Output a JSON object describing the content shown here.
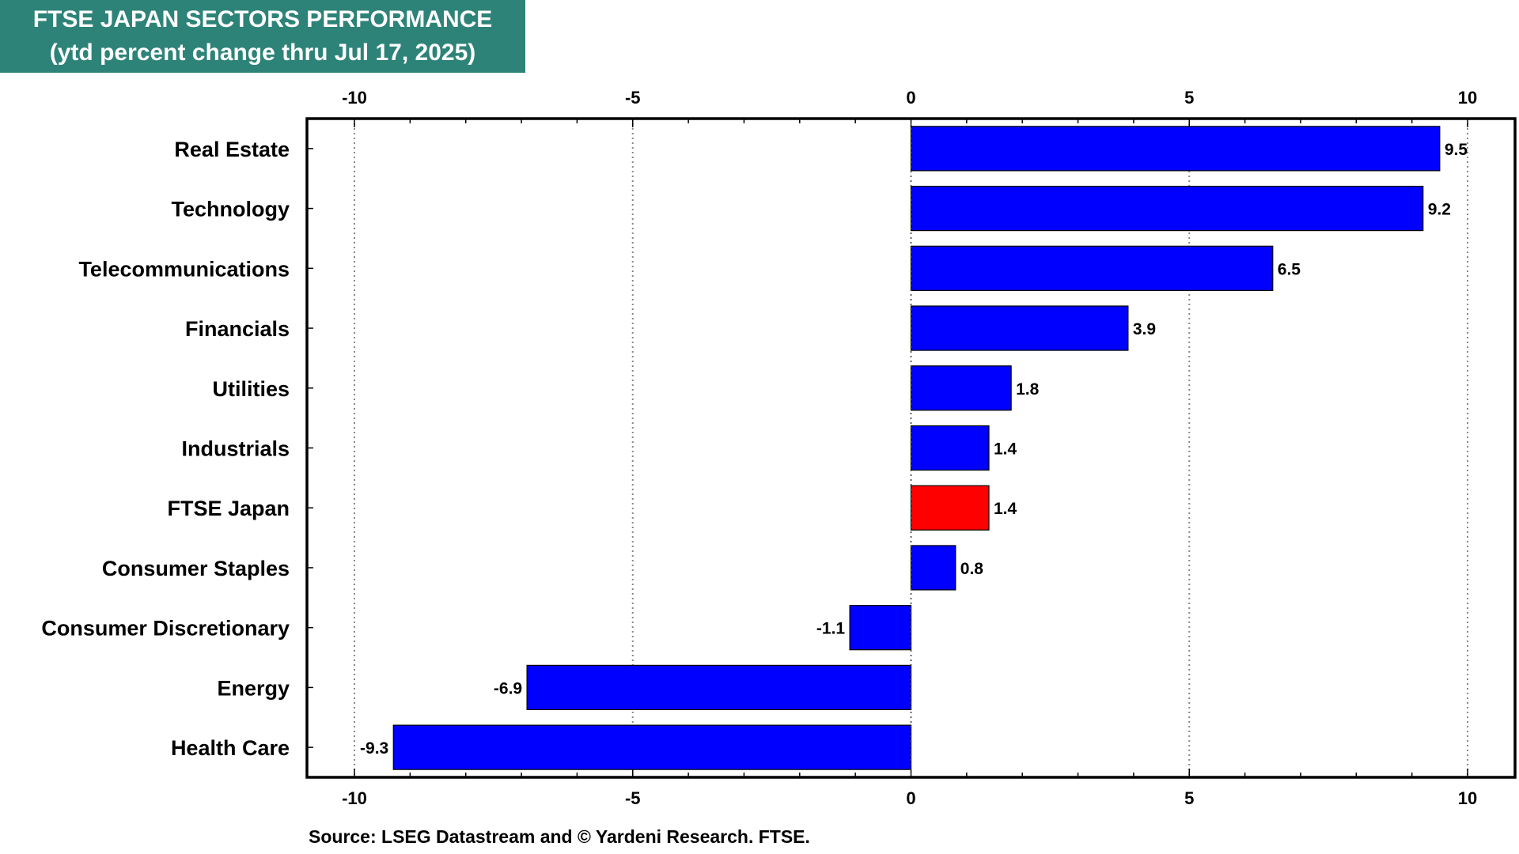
{
  "title": {
    "line1": "FTSE JAPAN SECTORS PERFORMANCE",
    "line2": "(ytd percent change thru Jul 17, 2025)"
  },
  "source": "Source: LSEG Datastream and © Yardeni Research. FTSE.",
  "colors": {
    "bar": "#0000ff",
    "highlight": "#ff0000",
    "title_bg": "#2e8378"
  },
  "chart_data": {
    "type": "bar",
    "orientation": "horizontal",
    "categories": [
      "Real Estate",
      "Technology",
      "Telecommunications",
      "Financials",
      "Utilities",
      "Industrials",
      "FTSE Japan",
      "Consumer Staples",
      "Consumer Discretionary",
      "Energy",
      "Health Care"
    ],
    "values": [
      9.5,
      9.2,
      6.5,
      3.9,
      1.8,
      1.4,
      1.4,
      0.8,
      -1.1,
      -6.9,
      -9.3
    ],
    "data_labels": [
      "9.5",
      "9.2",
      "6.5",
      "3.9",
      "1.8",
      "1.4",
      "1.4",
      "0.8",
      "-1.1",
      "-6.9",
      "-9.3"
    ],
    "highlight_category": "FTSE Japan",
    "xlim": [
      -10,
      10
    ],
    "x_ticks": [
      "-10",
      "-5",
      "0",
      "5",
      "10"
    ],
    "x_tick_values": [
      -10,
      -5,
      0,
      5,
      10
    ],
    "grid": "vertical dotted",
    "xlabel": "",
    "ylabel": ""
  }
}
